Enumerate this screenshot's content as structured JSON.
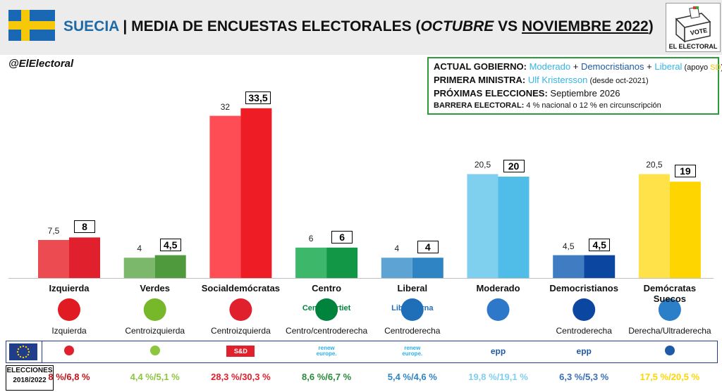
{
  "header": {
    "country": "SUECIA",
    "separator": "|",
    "title_main": "MEDIA DE ENCUESTAS ELECTORALES (",
    "month1": "OCTUBRE",
    "vs": " VS ",
    "month2": "NOVIEMBRE 2022",
    "close": ")"
  },
  "logo": {
    "vote_text": "VOTE",
    "brand_text": "EL ELECTORAL"
  },
  "handle": "@ElElectoral",
  "info": {
    "gov_label": "ACTUAL GOBIERNO:",
    "gov_p1": "Moderado",
    "gov_plus1": " + ",
    "gov_p2": "Democristianos",
    "gov_plus2": " + ",
    "gov_p3": "Liberal",
    "gov_apoyo": " (apoyo ",
    "gov_sd": "SD",
    "gov_close": ")",
    "pm_label": "PRIMERA MINISTRA:",
    "pm_name": "Ulf Kristersson",
    "pm_since": " (desde oct-2021)",
    "next_label": "PRÓXIMAS ELECCIONES:",
    "next_value": " Septiembre 2026",
    "barrier_label": "BARRERA ELECTORAL:",
    "barrier_value": " 4 % nacional o 12 % en circunscripción"
  },
  "chart_data": {
    "type": "bar",
    "categories": [
      "Izquierda",
      "Verdes",
      "Socialdemócratas",
      "Centro",
      "Liberal",
      "Moderado",
      "Democristianos",
      "Demócratas Suecos"
    ],
    "series": [
      {
        "values": [
          7.5,
          4,
          32,
          6,
          4,
          20.5,
          4.5,
          20.5
        ]
      },
      {
        "values": [
          8,
          4.5,
          33.5,
          6,
          4,
          20,
          4.5,
          19
        ]
      }
    ],
    "value_labels_oct": [
      "7,5",
      "4",
      "32",
      "6",
      "4",
      "20,5",
      "4,5",
      "20,5"
    ],
    "value_labels_nov": [
      "8",
      "4,5",
      "33,5",
      "6",
      "4",
      "20",
      "4,5",
      "19"
    ],
    "colors_oct": [
      "#ec4b52",
      "#7bb86c",
      "#ff4d55",
      "#3db86a",
      "#5da4d4",
      "#7fcfef",
      "#3f7cc2",
      "#ffe14a"
    ],
    "colors_nov": [
      "#e0202c",
      "#4f9a3c",
      "#ee1c25",
      "#129747",
      "#2f85c4",
      "#4fbde8",
      "#0b47a1",
      "#ffd500"
    ],
    "ylim": [
      0,
      36
    ]
  },
  "parties": [
    {
      "name": "Izquierda",
      "ideology": "Izquierda",
      "icon": "red-v-logo",
      "icon_color": "#e01b22",
      "eu_group": "left-group-icon",
      "elections": "8 %/6,8 %",
      "elec_color": "#c0141a"
    },
    {
      "name": "Verdes",
      "ideology": "Centroizquierda",
      "icon": "green-dandelion-logo",
      "icon_color": "#76b82a",
      "eu_group": "greens-group-icon",
      "elections": "4,4 %/5,1 %",
      "elec_color": "#8cc63f"
    },
    {
      "name": "Socialdemócratas",
      "ideology": "Centroizquierda",
      "icon": "red-rose-logo",
      "icon_color": "#e0202c",
      "eu_group": "s-and-d-group-icon",
      "eu_text": "S&D",
      "elections": "28,3 %/30,3 %",
      "elec_color": "#e0202c"
    },
    {
      "name": "Centro",
      "ideology": "Centro/centroderecha",
      "icon": "centerpartiet-logo",
      "icon_color": "#00843d",
      "icon_text": "Centerpartiet",
      "eu_group": "renew-group-icon",
      "eu_text": "renew europe.",
      "elections": "8,6 %/6,7 %",
      "elec_color": "#2a8a3c"
    },
    {
      "name": "Liberal",
      "ideology": "Centroderecha",
      "icon": "liberalerna-logo",
      "icon_color": "#1f6fb8",
      "icon_text": "Liberalerna",
      "eu_group": "renew-group-icon",
      "eu_text": "renew europe.",
      "elections": "5,4 %/4,6 %",
      "elec_color": "#2f85c4"
    },
    {
      "name": "Moderado",
      "ideology": "",
      "icon": "moderaterna-logo",
      "icon_color": "#2d78c8",
      "eu_group": "epp-group-icon",
      "eu_text": "epp",
      "elections": "19,8 %/19,1 %",
      "elec_color": "#7fcfef"
    },
    {
      "name": "Democristianos",
      "ideology": "Centroderecha",
      "icon": "kd-logo",
      "icon_color": "#0b47a1",
      "eu_group": "epp-group-icon",
      "eu_text": "epp",
      "elections": "6,3 %/5,3 %",
      "elec_color": "#3a6fb8"
    },
    {
      "name": "Demócratas Suecos",
      "ideology": "Derecha/Ultraderecha",
      "icon": "blue-yellow-flower-logo",
      "icon_color": "#2a7fc8",
      "eu_group": "ecr-group-icon",
      "elections": "17,5 %/20,5 %",
      "elec_color": "#ffd500"
    }
  ],
  "eu_flag": "eu-flag-icon",
  "elections_label_line1": "ELECCIONES",
  "elections_label_line2": "2018/2022"
}
